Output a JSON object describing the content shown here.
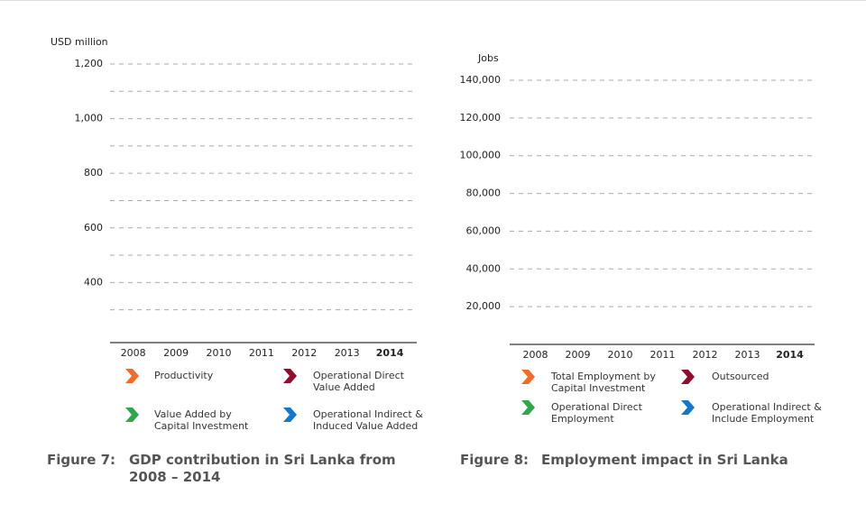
{
  "chart_data": [
    {
      "type": "bar",
      "figure_label": "Figure 7:",
      "title": "GDP contribution in Sri Lanka from 2008 – 2014",
      "y_label": "USD million",
      "categories": [
        "2008",
        "2009",
        "2010",
        "2011",
        "2012",
        "2013",
        "2014"
      ],
      "series": [
        {
          "name": "Productivity",
          "color": "#f26b2a",
          "values": [
            null,
            null,
            null,
            null,
            null,
            null,
            null
          ]
        },
        {
          "name": "Operational Direct Value Added",
          "color": "#8e0e2f",
          "values": [
            null,
            null,
            null,
            null,
            null,
            null,
            null
          ]
        },
        {
          "name": "Value Added by Capital Investment",
          "color": "#2ea84a",
          "values": [
            null,
            null,
            null,
            null,
            null,
            null,
            null
          ]
        },
        {
          "name": "Operational Indirect & Induced Value Added",
          "color": "#1477c9",
          "values": [
            null,
            null,
            null,
            null,
            null,
            null,
            null
          ]
        }
      ],
      "ylim": [
        180,
        1200
      ],
      "yticks": [
        400,
        600,
        800,
        {
          "value": 1000,
          "label": "1,000"
        },
        {
          "value": 1200,
          "label": "1,200"
        }
      ],
      "minor_yticks": [
        300,
        500,
        700,
        900,
        1100
      ],
      "grid": true
    },
    {
      "type": "bar",
      "figure_label": "Figure 8:",
      "title": "Employment impact in Sri Lanka",
      "y_label": "Jobs",
      "categories": [
        "2008",
        "2009",
        "2010",
        "2011",
        "2012",
        "2013",
        "2014"
      ],
      "series": [
        {
          "name": "Total Employment by Capital Investment",
          "color": "#f26b2a",
          "values": [
            null,
            null,
            null,
            null,
            null,
            null,
            null
          ]
        },
        {
          "name": "Outsourced",
          "color": "#8e0e2f",
          "values": [
            null,
            null,
            null,
            null,
            null,
            null,
            null
          ]
        },
        {
          "name": "Operational Direct Employment",
          "color": "#2ea84a",
          "values": [
            null,
            null,
            null,
            null,
            null,
            null,
            null
          ]
        },
        {
          "name": "Operational Indirect & Include Employment",
          "color": "#1477c9",
          "values": [
            null,
            null,
            null,
            null,
            null,
            null,
            null
          ]
        }
      ],
      "ylim": [
        0,
        140000
      ],
      "yticks": [
        {
          "value": 20000,
          "label": "20,000"
        },
        {
          "value": 40000,
          "label": "40,000"
        },
        {
          "value": 60000,
          "label": "60,000"
        },
        {
          "value": 80000,
          "label": "80,000"
        },
        {
          "value": 100000,
          "label": "100,000"
        },
        {
          "value": 120000,
          "label": "120,000"
        },
        {
          "value": 140000,
          "label": "140,000"
        }
      ],
      "grid": true
    }
  ]
}
